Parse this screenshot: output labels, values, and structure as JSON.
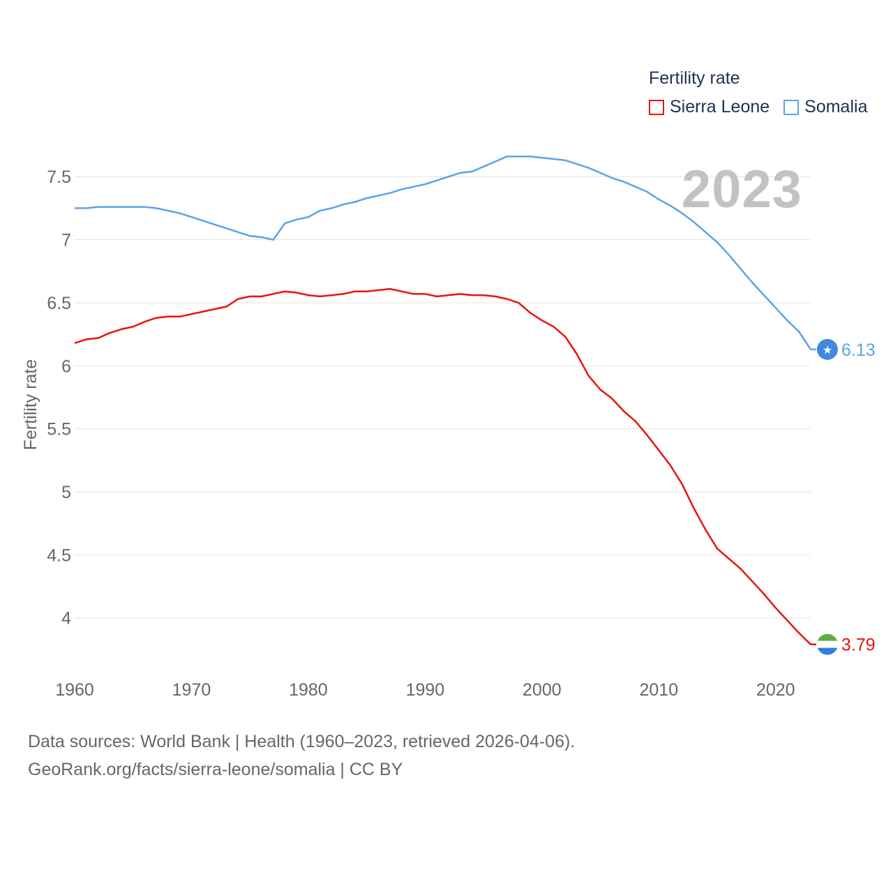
{
  "legend": {
    "title": "Fertility rate",
    "items": [
      {
        "label": "Sierra Leone",
        "color": "#e8130f"
      },
      {
        "label": "Somalia",
        "color": "#5ca3e6"
      }
    ]
  },
  "current_year": "2023",
  "footer": {
    "line1": "Data sources: World Bank | Health (1960–2023, retrieved 2026-04-06).",
    "line2": "GeoRank.org/facts/sierra-leone/somalia | CC BY"
  },
  "chart_data": {
    "type": "line",
    "title": "Fertility rate",
    "xlabel": "",
    "ylabel": "Fertility rate",
    "xlim": [
      1960,
      2023
    ],
    "ylim": [
      3.6,
      7.85
    ],
    "grid": true,
    "legend_position": "top-right",
    "x_ticks": [
      1960,
      1970,
      1980,
      1990,
      2000,
      2010,
      2020
    ],
    "y_ticks": [
      4,
      4.5,
      5,
      5.5,
      6,
      6.5,
      7,
      7.5
    ],
    "y_tick_labels": [
      "4",
      "4.5",
      "5",
      "5.5",
      "6",
      "6.5",
      "7",
      "7.5"
    ],
    "x": [
      1960,
      1961,
      1962,
      1963,
      1964,
      1965,
      1966,
      1967,
      1968,
      1969,
      1970,
      1971,
      1972,
      1973,
      1974,
      1975,
      1976,
      1977,
      1978,
      1979,
      1980,
      1981,
      1982,
      1983,
      1984,
      1985,
      1986,
      1987,
      1988,
      1989,
      1990,
      1991,
      1992,
      1993,
      1994,
      1995,
      1996,
      1997,
      1998,
      1999,
      2000,
      2001,
      2002,
      2003,
      2004,
      2005,
      2006,
      2007,
      2008,
      2009,
      2010,
      2011,
      2012,
      2013,
      2014,
      2015,
      2016,
      2017,
      2018,
      2019,
      2020,
      2021,
      2022,
      2023
    ],
    "series": [
      {
        "name": "Sierra Leone",
        "color": "#e8130f",
        "end_label": "3.79",
        "values": [
          6.18,
          6.21,
          6.22,
          6.26,
          6.29,
          6.31,
          6.35,
          6.38,
          6.39,
          6.39,
          6.41,
          6.43,
          6.45,
          6.47,
          6.53,
          6.55,
          6.55,
          6.57,
          6.59,
          6.58,
          6.56,
          6.55,
          6.56,
          6.57,
          6.59,
          6.59,
          6.6,
          6.61,
          6.59,
          6.57,
          6.57,
          6.55,
          6.56,
          6.57,
          6.56,
          6.56,
          6.55,
          6.53,
          6.5,
          6.42,
          6.36,
          6.31,
          6.23,
          6.09,
          5.92,
          5.81,
          5.74,
          5.64,
          5.56,
          5.45,
          5.33,
          5.21,
          5.06,
          4.87,
          4.7,
          4.55,
          4.47,
          4.39,
          4.29,
          4.19,
          4.08,
          3.98,
          3.88,
          3.79
        ]
      },
      {
        "name": "Somalia",
        "color": "#5ca3e6",
        "end_label": "6.13",
        "values": [
          7.25,
          7.25,
          7.26,
          7.26,
          7.26,
          7.26,
          7.26,
          7.25,
          7.23,
          7.21,
          7.18,
          7.15,
          7.12,
          7.09,
          7.06,
          7.03,
          7.02,
          7.0,
          7.13,
          7.16,
          7.18,
          7.23,
          7.25,
          7.28,
          7.3,
          7.33,
          7.35,
          7.37,
          7.4,
          7.42,
          7.44,
          7.47,
          7.5,
          7.53,
          7.54,
          7.58,
          7.62,
          7.66,
          7.66,
          7.66,
          7.65,
          7.64,
          7.63,
          7.6,
          7.57,
          7.53,
          7.49,
          7.46,
          7.42,
          7.38,
          7.32,
          7.27,
          7.21,
          7.14,
          7.06,
          6.98,
          6.88,
          6.77,
          6.66,
          6.56,
          6.46,
          6.36,
          6.27,
          6.13
        ]
      }
    ]
  }
}
